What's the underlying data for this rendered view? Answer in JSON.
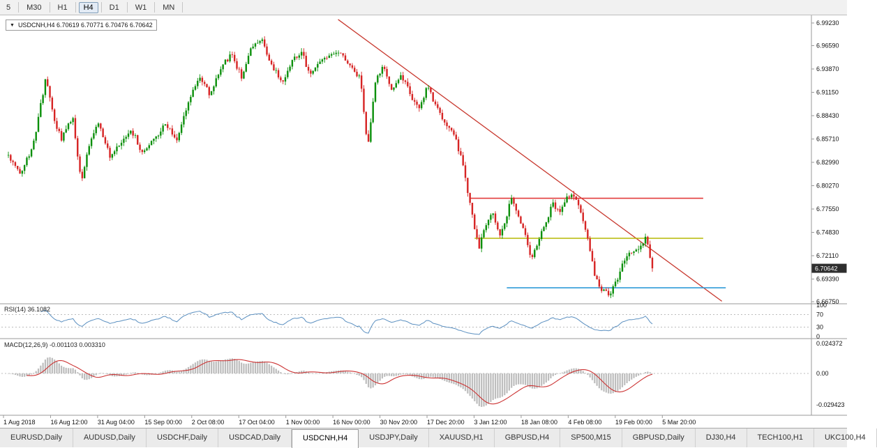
{
  "toolbar": {
    "timeframes": [
      "5",
      "M30",
      "H1",
      "H4",
      "D1",
      "W1",
      "MN"
    ],
    "active_index": 3
  },
  "tabs": {
    "items": [
      "EURUSD,Daily",
      "AUDUSD,Daily",
      "USDCHF,Daily",
      "USDCAD,Daily",
      "USDCNH,H4",
      "USDJPY,Daily",
      "XAUUSD,H1",
      "GBPUSD,H4",
      "SP500,M15",
      "GBPUSD,Daily",
      "DJ30,H4",
      "TECH100,H1",
      "UKC100,H4"
    ],
    "active_index": 4
  },
  "chart_data": {
    "type": "candlestick",
    "symbol": "USDCNH",
    "timeframe": "H4",
    "header_text": "USDCNH,H4 6.70619 6.70771 6.70476 6.70642",
    "quote": {
      "open": "6.70619",
      "high": "6.70771",
      "low": "6.70476",
      "close": "6.70642"
    },
    "price_badge": "6.70642",
    "last_close": 6.70642,
    "price_axis_top": 6.9923,
    "price_axis_bottom": 6.6675,
    "price_axis_labels": [
      "6.99230",
      "6.96590",
      "6.93870",
      "6.91150",
      "6.88430",
      "6.85710",
      "6.82990",
      "6.80270",
      "6.77550",
      "6.74830",
      "6.72110",
      "6.69390",
      "6.66750"
    ],
    "time_axis": [
      "1 Aug 2018",
      "16 Aug 12:00",
      "31 Aug 04:00",
      "15 Sep 00:00",
      "2 Oct 08:00",
      "17 Oct 04:00",
      "1 Nov 00:00",
      "16 Nov 00:00",
      "30 Nov 20:00",
      "17 Dec 20:00",
      "3 Jan 12:00",
      "18 Jan 08:00",
      "4 Feb 08:00",
      "19 Feb 00:00",
      "5 Mar 20:00"
    ],
    "candle_count": 280,
    "noise_seed": 42,
    "anchors": [
      [
        0.0,
        6.838
      ],
      [
        0.018,
        6.815
      ],
      [
        0.04,
        6.855
      ],
      [
        0.058,
        6.928
      ],
      [
        0.07,
        6.882
      ],
      [
        0.082,
        6.856
      ],
      [
        0.1,
        6.882
      ],
      [
        0.113,
        6.808
      ],
      [
        0.126,
        6.855
      ],
      [
        0.14,
        6.878
      ],
      [
        0.158,
        6.835
      ],
      [
        0.175,
        6.85
      ],
      [
        0.192,
        6.868
      ],
      [
        0.208,
        6.84
      ],
      [
        0.228,
        6.86
      ],
      [
        0.245,
        6.876
      ],
      [
        0.262,
        6.855
      ],
      [
        0.282,
        6.906
      ],
      [
        0.298,
        6.93
      ],
      [
        0.314,
        6.908
      ],
      [
        0.33,
        6.942
      ],
      [
        0.347,
        6.956
      ],
      [
        0.362,
        6.93
      ],
      [
        0.378,
        6.962
      ],
      [
        0.394,
        6.974
      ],
      [
        0.41,
        6.94
      ],
      [
        0.425,
        6.924
      ],
      [
        0.44,
        6.95
      ],
      [
        0.455,
        6.957
      ],
      [
        0.468,
        6.932
      ],
      [
        0.483,
        6.946
      ],
      [
        0.5,
        6.952
      ],
      [
        0.516,
        6.956
      ],
      [
        0.532,
        6.94
      ],
      [
        0.547,
        6.926
      ],
      [
        0.558,
        6.842
      ],
      [
        0.57,
        6.922
      ],
      [
        0.582,
        6.94
      ],
      [
        0.596,
        6.914
      ],
      [
        0.61,
        6.932
      ],
      [
        0.624,
        6.91
      ],
      [
        0.638,
        6.892
      ],
      [
        0.651,
        6.918
      ],
      [
        0.665,
        6.896
      ],
      [
        0.679,
        6.876
      ],
      [
        0.694,
        6.864
      ],
      [
        0.71,
        6.812
      ],
      [
        0.723,
        6.756
      ],
      [
        0.731,
        6.733
      ],
      [
        0.742,
        6.758
      ],
      [
        0.753,
        6.772
      ],
      [
        0.763,
        6.744
      ],
      [
        0.773,
        6.762
      ],
      [
        0.781,
        6.79
      ],
      [
        0.791,
        6.768
      ],
      [
        0.801,
        6.75
      ],
      [
        0.812,
        6.716
      ],
      [
        0.823,
        6.736
      ],
      [
        0.833,
        6.756
      ],
      [
        0.845,
        6.782
      ],
      [
        0.856,
        6.77
      ],
      [
        0.868,
        6.788
      ],
      [
        0.879,
        6.793
      ],
      [
        0.889,
        6.77
      ],
      [
        0.899,
        6.744
      ],
      [
        0.91,
        6.7
      ],
      [
        0.92,
        6.682
      ],
      [
        0.931,
        6.675
      ],
      [
        0.943,
        6.688
      ],
      [
        0.955,
        6.714
      ],
      [
        0.968,
        6.724
      ],
      [
        0.98,
        6.734
      ],
      [
        0.99,
        6.742
      ],
      [
        1.0,
        6.70642
      ]
    ],
    "overlays": [
      {
        "name": "descending-trendline",
        "kind": "trend",
        "color": "#c8392f",
        "p1": [
          0.512,
          6.9964
        ],
        "p2": [
          1.108,
          6.668
        ],
        "width": 1.3
      },
      {
        "name": "resistance-line-red",
        "kind": "hline",
        "color": "#e23b3b",
        "price": 6.788,
        "x1f": 0.718,
        "x2f": 1.079,
        "width": 1.6
      },
      {
        "name": "support-line-yellow",
        "kind": "hline",
        "color": "#b5b804",
        "price": 6.7414,
        "x1f": 0.724,
        "x2f": 1.079,
        "width": 1.6
      },
      {
        "name": "support-line-blue",
        "kind": "hline",
        "color": "#2f9bd8",
        "price": 6.6837,
        "x1f": 0.774,
        "x2f": 1.114,
        "width": 1.6
      }
    ],
    "indicators": {
      "rsi": {
        "label": "RSI(14) 36.1082",
        "period": 14,
        "last": 36.1082,
        "levels": [
          70,
          30
        ],
        "axis": [
          "100",
          "70",
          "30",
          "0"
        ]
      },
      "macd": {
        "label": "MACD(12,26,9) -0.001103 0.003310",
        "fast": 12,
        "slow": 26,
        "signal": 9,
        "last": -0.001103,
        "last_signal": 0.00331,
        "axis": [
          "0.024372",
          "0.00",
          "-0.029423"
        ]
      }
    },
    "colors": {
      "candle_up": "#0a8f0a",
      "candle_down": "#d62323",
      "rsi_line": "#5a8fc0",
      "macd_hist": "#bdbdbd",
      "macd_signal": "#cc3333",
      "badge_bg": "#2e2e2e",
      "badge_text": "#ffffff",
      "grid_dashed": "#bcbcbc",
      "separator": "#9a9a9a",
      "axis_text": "#111111"
    }
  }
}
